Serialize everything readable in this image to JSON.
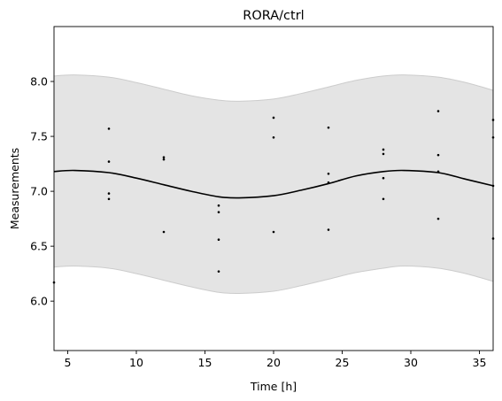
{
  "chart_data": {
    "type": "scatter",
    "title": "RORA/ctrl",
    "xlabel": "Time [h]",
    "ylabel": "Measurements",
    "xlim": [
      4,
      36
    ],
    "ylim": [
      5.55,
      8.5
    ],
    "xticks": [
      5,
      10,
      15,
      20,
      25,
      30,
      35
    ],
    "yticks": [
      6.0,
      6.5,
      7.0,
      7.5,
      8.0
    ],
    "grid": false,
    "colors": {
      "points": "#000000",
      "fit_line": "#000000",
      "band_fill": "#e4e4e4",
      "band_edge": "#cccccc"
    },
    "series": [
      {
        "type": "scatter",
        "points": [
          {
            "x": 4,
            "y": 6.17
          },
          {
            "x": 8,
            "y": 7.57
          },
          {
            "x": 8,
            "y": 7.27
          },
          {
            "x": 8,
            "y": 6.98
          },
          {
            "x": 8,
            "y": 6.93
          },
          {
            "x": 12,
            "y": 7.31
          },
          {
            "x": 12,
            "y": 7.29
          },
          {
            "x": 12,
            "y": 6.63
          },
          {
            "x": 16,
            "y": 6.87
          },
          {
            "x": 16,
            "y": 6.81
          },
          {
            "x": 16,
            "y": 6.56
          },
          {
            "x": 16,
            "y": 6.27
          },
          {
            "x": 20,
            "y": 7.67
          },
          {
            "x": 20,
            "y": 7.49
          },
          {
            "x": 20,
            "y": 6.63
          },
          {
            "x": 24,
            "y": 7.58
          },
          {
            "x": 24,
            "y": 7.16
          },
          {
            "x": 24,
            "y": 7.08
          },
          {
            "x": 24,
            "y": 6.65
          },
          {
            "x": 28,
            "y": 7.38
          },
          {
            "x": 28,
            "y": 7.34
          },
          {
            "x": 28,
            "y": 7.12
          },
          {
            "x": 28,
            "y": 6.93
          },
          {
            "x": 32,
            "y": 7.73
          },
          {
            "x": 32,
            "y": 7.33
          },
          {
            "x": 32,
            "y": 7.18
          },
          {
            "x": 32,
            "y": 6.75
          },
          {
            "x": 36,
            "y": 7.65
          },
          {
            "x": 36,
            "y": 7.49
          },
          {
            "x": 36,
            "y": 7.05
          },
          {
            "x": 36,
            "y": 6.57
          }
        ]
      },
      {
        "type": "line",
        "x": [
          4,
          5.5,
          8,
          10,
          12,
          14,
          16,
          17.5,
          20,
          22,
          24,
          26,
          28,
          29.5,
          32,
          34,
          36
        ],
        "y": [
          7.18,
          7.19,
          7.17,
          7.12,
          7.06,
          7.0,
          6.95,
          6.94,
          6.96,
          7.01,
          7.07,
          7.14,
          7.18,
          7.19,
          7.17,
          7.11,
          7.05
        ]
      },
      {
        "type": "band",
        "x": [
          4,
          5.5,
          8,
          10,
          12,
          14,
          16,
          17.5,
          20,
          22,
          24,
          26,
          28,
          29.5,
          32,
          34,
          36
        ],
        "upper": [
          8.05,
          8.06,
          8.04,
          7.99,
          7.93,
          7.87,
          7.83,
          7.82,
          7.84,
          7.89,
          7.95,
          8.01,
          8.05,
          8.06,
          8.04,
          7.99,
          7.92
        ],
        "lower": [
          6.31,
          6.32,
          6.3,
          6.25,
          6.19,
          6.13,
          6.08,
          6.07,
          6.09,
          6.14,
          6.2,
          6.26,
          6.3,
          6.32,
          6.3,
          6.25,
          6.18
        ]
      }
    ]
  }
}
